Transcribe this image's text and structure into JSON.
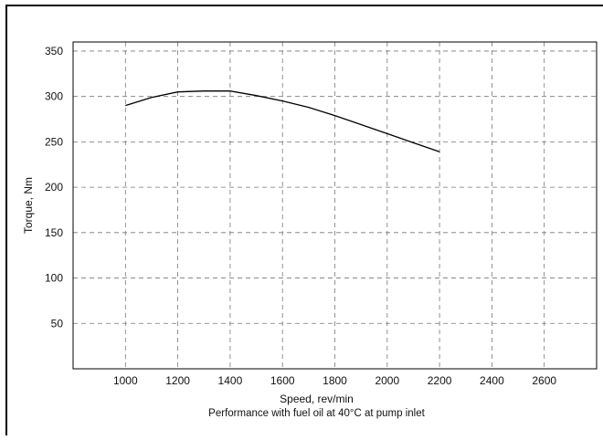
{
  "chart_data": {
    "type": "line",
    "title": "",
    "xlabel": "Speed, rev/min",
    "ylabel": "Torque, Nm",
    "caption": "Performance with fuel oil at 40°C at pump inlet",
    "xlim": [
      800,
      2800
    ],
    "ylim": [
      0,
      360
    ],
    "xticks": [
      1000,
      1200,
      1400,
      1600,
      1800,
      2000,
      2200,
      2400,
      2600
    ],
    "yticks": [
      50,
      100,
      150,
      200,
      250,
      300,
      350
    ],
    "grid": true,
    "legend": "none",
    "series": [
      {
        "x": [
          1000,
          1100,
          1200,
          1300,
          1400,
          1500,
          1600,
          1700,
          1800,
          1900,
          2000,
          2100,
          2200
        ],
        "y": [
          290,
          299,
          305,
          306,
          306,
          301,
          295,
          288,
          279,
          269,
          259,
          249,
          239
        ]
      }
    ],
    "colors": {
      "line": "#000000",
      "grid": "#777777",
      "axis": "#000000"
    }
  }
}
